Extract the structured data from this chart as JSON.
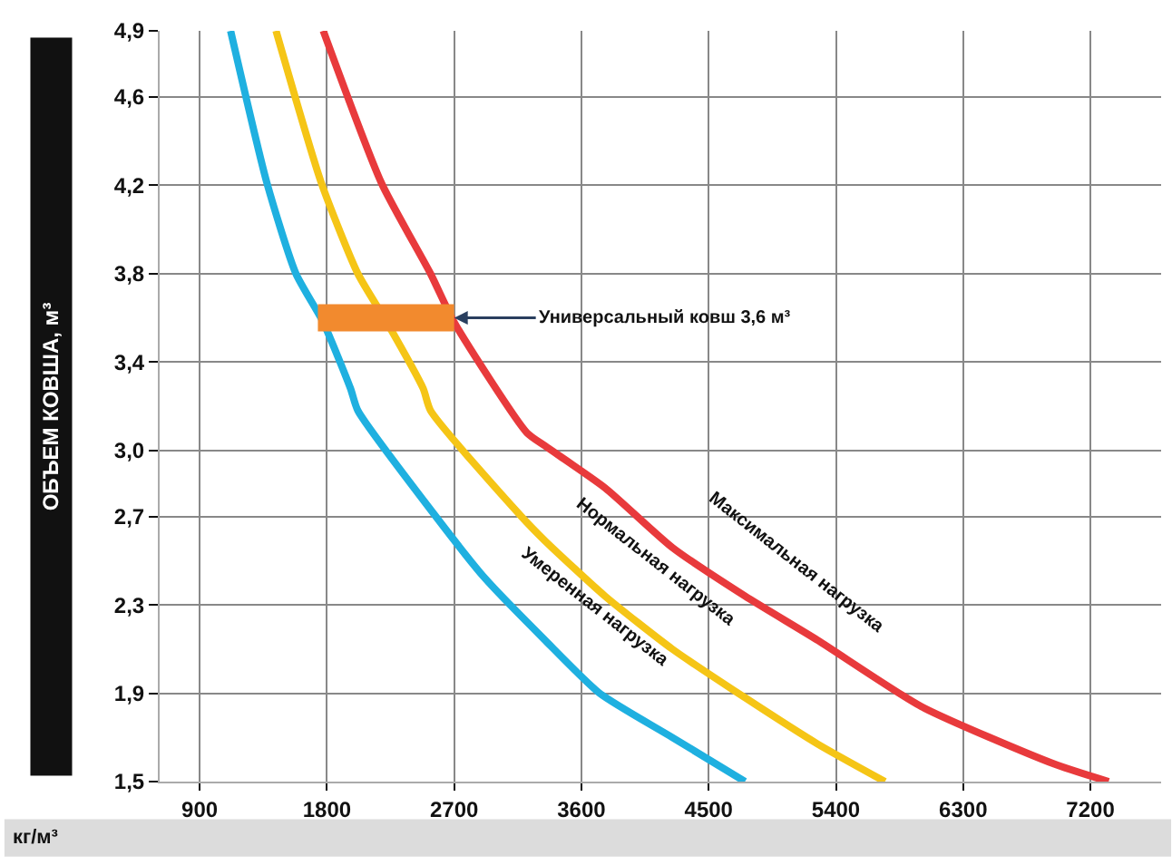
{
  "chart_data": {
    "type": "line",
    "ylabel": "ОБЪЕМ КОВША, м³",
    "xlabel": "кг/м³",
    "xlim": [
      617,
      7700
    ],
    "ylim": [
      1.5,
      4.9
    ],
    "xticks": [
      900,
      1800,
      2700,
      3600,
      4500,
      5400,
      6300,
      7200
    ],
    "yticks": [
      {
        "value": 1.5,
        "label": "1,5"
      },
      {
        "value": 1.9,
        "label": "1,9"
      },
      {
        "value": 2.3,
        "label": "2,3"
      },
      {
        "value": 2.7,
        "label": "2,7"
      },
      {
        "value": 3.0,
        "label": "3,0"
      },
      {
        "value": 3.4,
        "label": "3,4"
      },
      {
        "value": 3.8,
        "label": "3,8"
      },
      {
        "value": 4.2,
        "label": "4,2"
      },
      {
        "value": 4.6,
        "label": "4,6"
      },
      {
        "value": 4.9,
        "label": "4,9"
      }
    ],
    "grid": true,
    "legend": false,
    "marker": "none",
    "line_style": "solid",
    "series": [
      {
        "name": "Умеренная нагрузка",
        "color": "#1fb0e0",
        "x": [
          1119,
          1376,
          1581,
          1774,
          1967,
          2019,
          2571,
          2919,
          3343,
          3729,
          4243,
          4757
        ],
        "values": [
          4.9,
          4.21,
          3.8,
          3.58,
          3.28,
          3.18,
          2.7,
          2.42,
          2.14,
          1.9,
          1.7,
          1.5
        ]
      },
      {
        "name": "Нормальная нагрузка",
        "color": "#f5c516",
        "x": [
          1440,
          1761,
          2019,
          2224,
          2481,
          2533,
          3176,
          3343,
          3767,
          4243,
          4757,
          5271,
          5747
        ],
        "values": [
          4.9,
          4.21,
          3.8,
          3.58,
          3.28,
          3.18,
          2.7,
          2.59,
          2.34,
          2.1,
          1.88,
          1.67,
          1.5
        ]
      },
      {
        "name": "Максимальная нагрузка",
        "color": "#e83a3c",
        "x": [
          1774,
          2186,
          2533,
          2700,
          3214,
          3343,
          3767,
          4243,
          4757,
          5271,
          6004,
          6943,
          7329
        ],
        "values": [
          4.9,
          4.21,
          3.8,
          3.58,
          3.08,
          3.02,
          2.83,
          2.56,
          2.34,
          2.14,
          1.84,
          1.58,
          1.5
        ]
      },
      {
        "color": "#f28a2e",
        "x": [
          1736,
          2700
        ],
        "values": [
          3.6,
          3.6
        ]
      }
    ],
    "annotations": [
      {
        "text": "Универсальный ковш 3,6 м³",
        "x": 2700,
        "y": 3.6
      }
    ]
  }
}
